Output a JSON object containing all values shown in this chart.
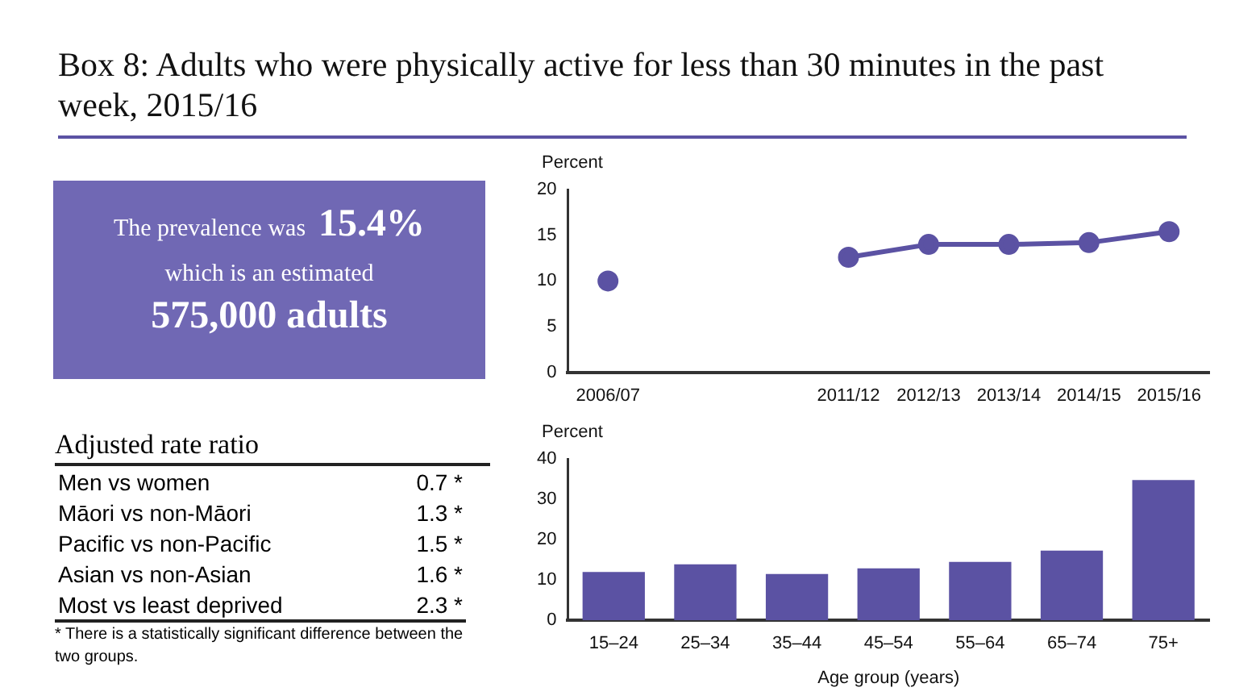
{
  "chart_data": [
    {
      "type": "other",
      "title": "Box 8: Adults who were physically active for less than 30 minutes in the past week, 2015/16",
      "annotations": [
        "The prevalence was",
        "15.4%",
        "which is an estimated",
        "575,000 adults"
      ]
    },
    {
      "type": "line",
      "ylabel": "Percent",
      "categories": [
        "2006/07",
        null,
        null,
        "2011/12",
        "2012/13",
        "2013/14",
        "2014/15",
        "2015/16"
      ],
      "series": [
        {
          "color": "#5b52a3",
          "values": [
            10,
            null,
            null,
            12.6,
            14.0,
            14.0,
            14.2,
            15.4
          ]
        }
      ],
      "ylim": [
        0,
        20
      ],
      "yticks": [
        0,
        5,
        10,
        15,
        20
      ],
      "grid": false,
      "legend": false,
      "marker": "circle",
      "line_style": "solid"
    },
    {
      "type": "other",
      "title": "Adjusted rate ratio",
      "categories": [
        "Men vs women",
        "Māori vs non-Māori",
        "Pacific vs non-Pacific",
        "Asian vs non-Asian",
        "Most vs least deprived"
      ],
      "value_labels": [
        "0.7 *",
        "1.3 *",
        "1.5 *",
        "1.6 *",
        "2.3 *"
      ],
      "annotations": [
        "* There is a statistically significant difference between the two groups."
      ]
    },
    {
      "type": "bar",
      "ylabel": "Percent",
      "xlabel": "Age group (years)",
      "categories": [
        "15–24",
        "25–34",
        "35–44",
        "45–54",
        "55–64",
        "65–74",
        "75+"
      ],
      "series": [
        {
          "color": "#5b52a3",
          "values": [
            12.0,
            13.9,
            11.5,
            12.9,
            14.5,
            17.3,
            34.8
          ]
        }
      ],
      "ylim": [
        0,
        40
      ],
      "yticks": [
        0,
        10,
        20,
        30,
        40
      ],
      "grid": false,
      "legend": false
    }
  ]
}
